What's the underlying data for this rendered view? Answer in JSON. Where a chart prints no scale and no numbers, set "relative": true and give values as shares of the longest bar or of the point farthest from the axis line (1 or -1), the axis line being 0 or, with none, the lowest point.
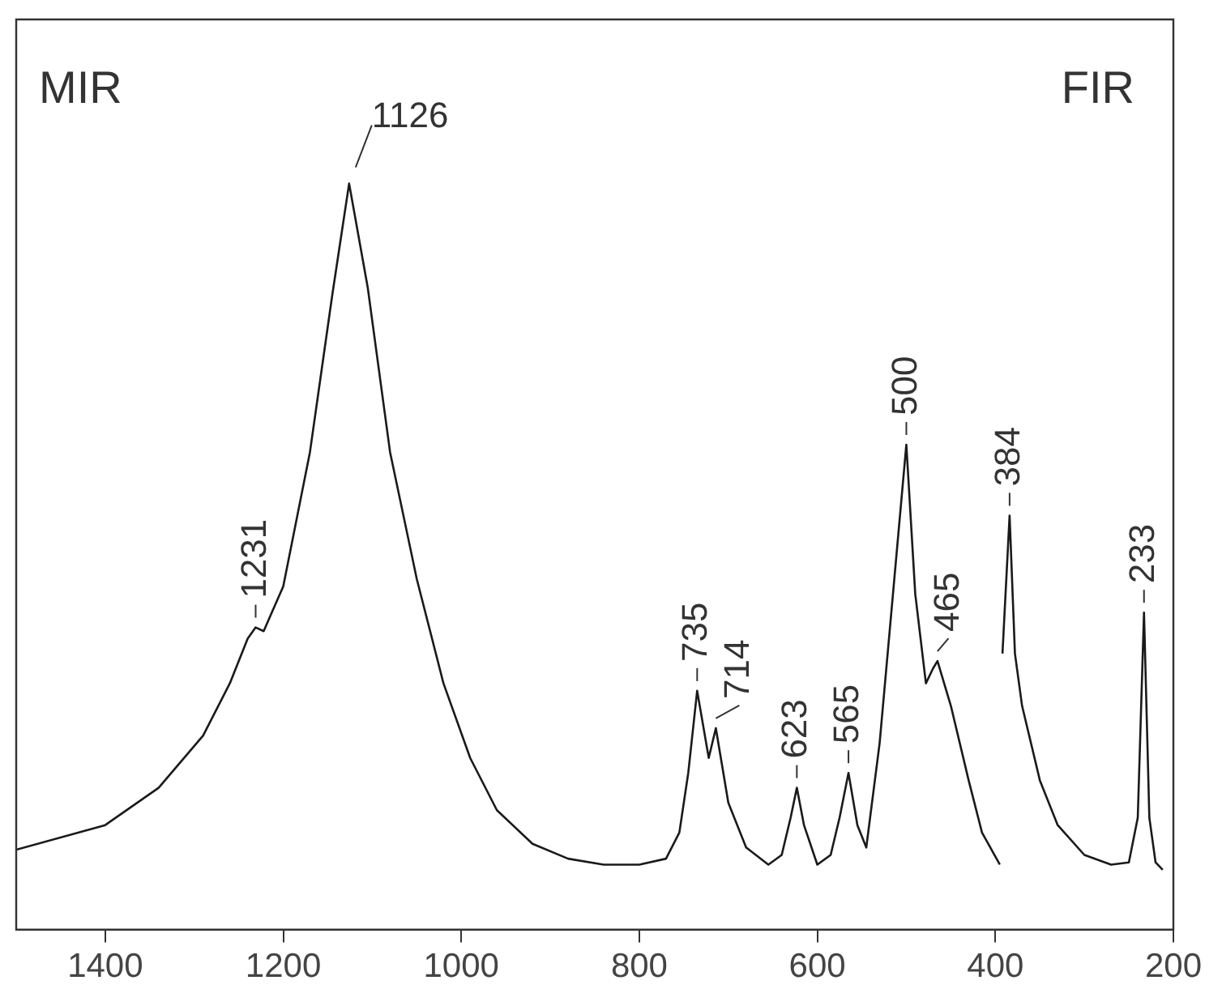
{
  "chart_data": {
    "type": "line",
    "relative": true,
    "xlim": [
      1500,
      200
    ],
    "xticks": [
      1400,
      1200,
      1000,
      800,
      600,
      400,
      200
    ],
    "tick_labels": "x",
    "grid": false,
    "legend": false,
    "marker": "none",
    "line_style": "solid",
    "series": [
      {
        "color": "#1a1a1a",
        "x": [
          1500,
          1400,
          1340,
          1290,
          1260,
          1240,
          1231,
          1222,
          1200,
          1170,
          1145,
          1126,
          1105,
          1080,
          1050,
          1020,
          990,
          960,
          920,
          880,
          840,
          800,
          770,
          755,
          745,
          735,
          722,
          714,
          700,
          680,
          655,
          640,
          630,
          623,
          615,
          600,
          585,
          575,
          565,
          555,
          545,
          530,
          515,
          500,
          490,
          478,
          470,
          465,
          450,
          430,
          415,
          395
        ],
        "values": [
          0.107,
          0.14,
          0.19,
          0.26,
          0.33,
          0.39,
          0.405,
          0.4,
          0.46,
          0.64,
          0.85,
          1,
          0.86,
          0.64,
          0.47,
          0.33,
          0.23,
          0.16,
          0.115,
          0.095,
          0.087,
          0.087,
          0.095,
          0.13,
          0.21,
          0.32,
          0.23,
          0.27,
          0.17,
          0.11,
          0.087,
          0.1,
          0.15,
          0.19,
          0.14,
          0.087,
          0.1,
          0.15,
          0.21,
          0.14,
          0.11,
          0.25,
          0.45,
          0.65,
          0.45,
          0.33,
          0.35,
          0.36,
          0.3,
          0.2,
          0.13,
          0.087
        ]
      },
      {
        "color": "#1a1a1a",
        "x": [
          392,
          384,
          378,
          370,
          350,
          330,
          300,
          270,
          250,
          240,
          233,
          227,
          220,
          212
        ],
        "values": [
          0.37,
          0.555,
          0.37,
          0.3,
          0.2,
          0.14,
          0.1,
          0.087,
          0.09,
          0.15,
          0.425,
          0.15,
          0.09,
          0.08
        ]
      }
    ],
    "annotations": [
      "MIR",
      "FIR",
      {
        "text": "1126",
        "x": 1126,
        "y": 1
      },
      {
        "text": "1231",
        "x": 1231,
        "y": 0.405
      },
      {
        "text": "735",
        "x": 735,
        "y": 0.32
      },
      {
        "text": "714",
        "x": 714,
        "y": 0.27
      },
      {
        "text": "623",
        "x": 623,
        "y": 0.19
      },
      {
        "text": "565",
        "x": 565,
        "y": 0.21
      },
      {
        "text": "500",
        "x": 500,
        "y": 0.65
      },
      {
        "text": "465",
        "x": 465,
        "y": 0.36
      },
      {
        "text": "384",
        "x": 384,
        "y": 0.555
      },
      {
        "text": "233",
        "x": 233,
        "y": 0.425
      }
    ]
  }
}
